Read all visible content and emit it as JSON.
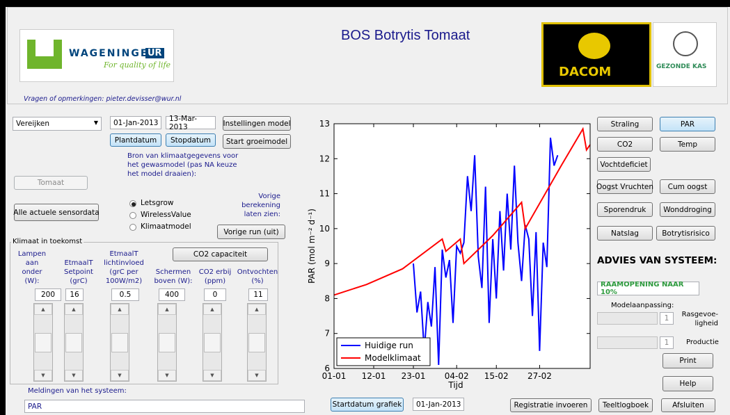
{
  "header": {
    "title": "BOS Botrytis Tomaat",
    "logo_wur": "WAGENINGEN",
    "logo_wur_ur": "UR",
    "logo_wur_tagline": "For quality of life",
    "logo_dacom": "DACOM",
    "logo_gezonde_kas": "GEZONDE KAS",
    "contact": "Vragen of opmerkingen: pieter.devisser@wur.nl"
  },
  "controls": {
    "location": "Vereijken",
    "start_date": "01-Jan-2013",
    "stop_date": "13-Mar-2013",
    "btn_settings": "Instellingen model",
    "btn_plant": "Plantdatum",
    "btn_stop": "Stopdatum",
    "btn_start": "Start groeimodel",
    "source_text": "Bron van klimaatgegevens voor het gewasmodel (pas NA keuze het model draaien):",
    "crop": "Tomaat",
    "btn_sensor": "Alle actuele sensordata",
    "radio": [
      "Letsgrow",
      "WirelessValue",
      "Klimaatmodel"
    ],
    "previous_text": "Vorige berekening laten zien:",
    "btn_previous": "Vorige run (uit)"
  },
  "future": {
    "group": "Klimaat in toekomst",
    "btn_co2": "CO2 capaciteit",
    "columns": [
      {
        "label": "Lampen aan onder (W):",
        "value": "200"
      },
      {
        "label": "EtmaalT Setpoint (grC)",
        "value": "16"
      },
      {
        "label": "EtmaalT lichtinvloed (grC per 100W/m2)",
        "value": "0.5"
      },
      {
        "label": "Schermen boven (W):",
        "value": "400"
      },
      {
        "label": "CO2 erbij (ppm)",
        "value": "0"
      },
      {
        "label": "Ontvochten (%)",
        "value": "11"
      }
    ]
  },
  "messages": {
    "label": "Meldingen van het systeem:",
    "text": "PAR"
  },
  "chart_controls": {
    "btn_startdate": "Startdatum grafiek",
    "startdate": "01-Jan-2013"
  },
  "right": {
    "buttons": [
      "Straling",
      "PAR",
      "CO2",
      "Temp",
      "Vochtdeficiet",
      "Oogst Vruchten",
      "Cum oogst",
      "Sporendruk",
      "Wonddroging",
      "Natslag",
      "Botrytisrisico"
    ],
    "advice_title": "ADVIES VAN SYSTEEM:",
    "advice": "RAAMOPENING NAAR 10%",
    "model_adjust": "Modelaanpassing:",
    "slider1_value": "1",
    "slider1_label": "Rasgevoe-ligheid",
    "slider2_value": "1",
    "slider2_label": "Productie",
    "btn_print": "Print",
    "btn_help": "Help"
  },
  "bottom": {
    "btn_register": "Registratie invoeren",
    "btn_log": "Teeltlogboek",
    "btn_close": "Afsluiten"
  },
  "chart_data": {
    "type": "line",
    "xlabel": "Tijd",
    "ylabel": "PAR (mol m⁻² d⁻¹)",
    "xlim": [
      "01-01",
      "13-03"
    ],
    "xticks": [
      "01-01",
      "12-01",
      "23-01",
      "04-02",
      "15-02",
      "27-02"
    ],
    "ylim": [
      6,
      13
    ],
    "yticks": [
      6,
      7,
      8,
      9,
      10,
      11,
      12,
      13
    ],
    "legend": "lower left",
    "series": [
      {
        "name": "Huidige run",
        "color": "#0000ff",
        "x": [
          "23-01",
          "24-01",
          "25-01",
          "26-01",
          "27-01",
          "28-01",
          "29-01",
          "30-01",
          "31-01",
          "01-02",
          "02-02",
          "03-02",
          "04-02",
          "05-02",
          "06-02",
          "07-02",
          "08-02",
          "09-02",
          "10-02",
          "11-02",
          "12-02",
          "13-02",
          "14-02",
          "15-02",
          "16-02",
          "17-02",
          "18-02",
          "19-02",
          "20-02",
          "21-02",
          "22-02",
          "23-02",
          "24-02",
          "25-02",
          "26-02",
          "27-02",
          "28-02",
          "01-03",
          "02-03",
          "03-03",
          "04-03"
        ],
        "values": [
          9.0,
          7.6,
          8.2,
          6.5,
          7.9,
          7.2,
          8.9,
          6.1,
          9.4,
          8.6,
          9.1,
          7.3,
          9.5,
          9.3,
          9.6,
          11.5,
          10.5,
          12.1,
          9.2,
          8.3,
          11.2,
          7.3,
          9.7,
          8.0,
          10.5,
          8.8,
          11.0,
          9.4,
          11.8,
          9.6,
          8.5,
          10.1,
          9.7,
          7.5,
          9.9,
          6.5,
          9.6,
          8.9,
          12.6,
          11.8,
          12.1
        ]
      },
      {
        "name": "Modelklimaat",
        "color": "#ff0000",
        "x": [
          "01-01",
          "10-01",
          "20-01",
          "31-01",
          "01-02",
          "05-02",
          "06-02",
          "14-02",
          "22-02",
          "23-02",
          "05-03",
          "11-03",
          "12-03",
          "13-03"
        ],
        "values": [
          8.1,
          8.4,
          8.85,
          9.7,
          9.35,
          9.7,
          9.0,
          9.8,
          10.75,
          10.0,
          11.8,
          12.85,
          12.25,
          12.4
        ]
      }
    ]
  }
}
